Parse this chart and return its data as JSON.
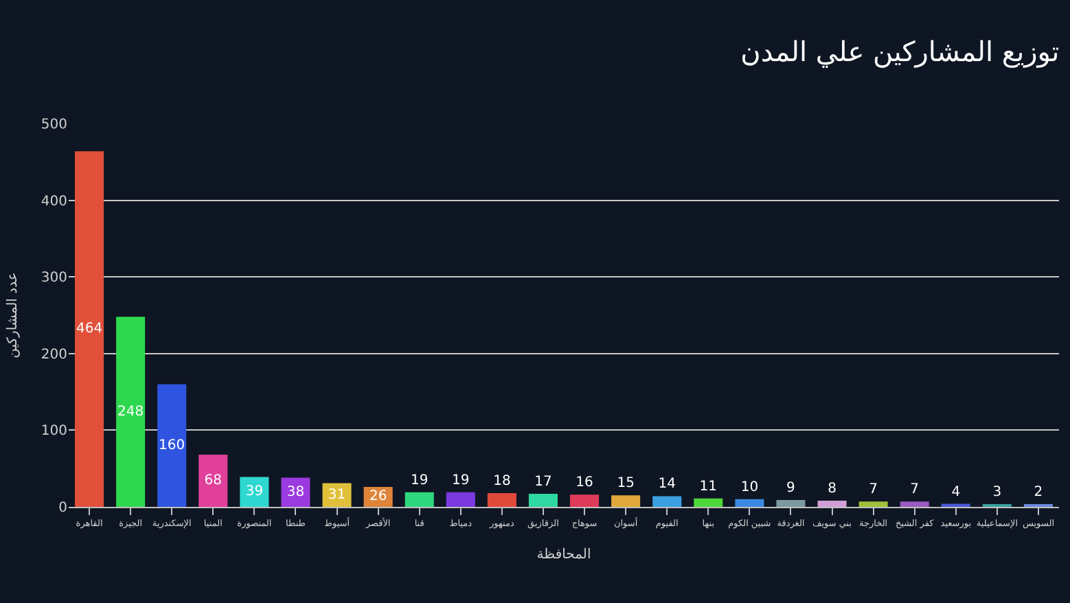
{
  "chart_data": {
    "type": "bar",
    "title": "توزيع المشاركين علي المدن",
    "xlabel": "المحافظة",
    "ylabel": "عدد المشاركين",
    "categories": [
      "القاهرة",
      "الجيزة",
      "الإسكندرية",
      "المنيا",
      "المنصورة",
      "طنطا",
      "أسيوط",
      "الأقصر",
      "قنا",
      "دمياط",
      "دمنهور",
      "الزقازيق",
      "سوهاج",
      "أسوان",
      "الفيوم",
      "بنها",
      "شبين الكوم",
      "الغردقة",
      "بني سويف",
      "الخارجة",
      "كفر الشيخ",
      "بورسعيد",
      "الإسماعيلية",
      "السويس"
    ],
    "values": [
      464,
      248,
      160,
      68,
      39,
      38,
      31,
      26,
      19,
      19,
      18,
      17,
      16,
      15,
      14,
      11,
      10,
      9,
      8,
      7,
      7,
      4,
      3,
      2
    ],
    "colors": [
      "#e0503a",
      "#2ed84e",
      "#2f55e0",
      "#e0409a",
      "#2ed8d0",
      "#9a3ae0",
      "#e0c03a",
      "#e0843a",
      "#2ed87e",
      "#7a3ae0",
      "#e04a3a",
      "#2ed8a0",
      "#e03a5a",
      "#e0a83a",
      "#3aa0e0",
      "#4ed83a",
      "#3a8ae0",
      "#7a9aa0",
      "#d0a0d8",
      "#a0c03a",
      "#9a5ac0",
      "#4a5ad8",
      "#3aa0a0",
      "#6a8ae0"
    ],
    "ylim": [
      0,
      500
    ],
    "yticks": [
      0,
      100,
      200,
      300,
      400,
      500
    ],
    "grid": "y",
    "data_labels": true
  }
}
